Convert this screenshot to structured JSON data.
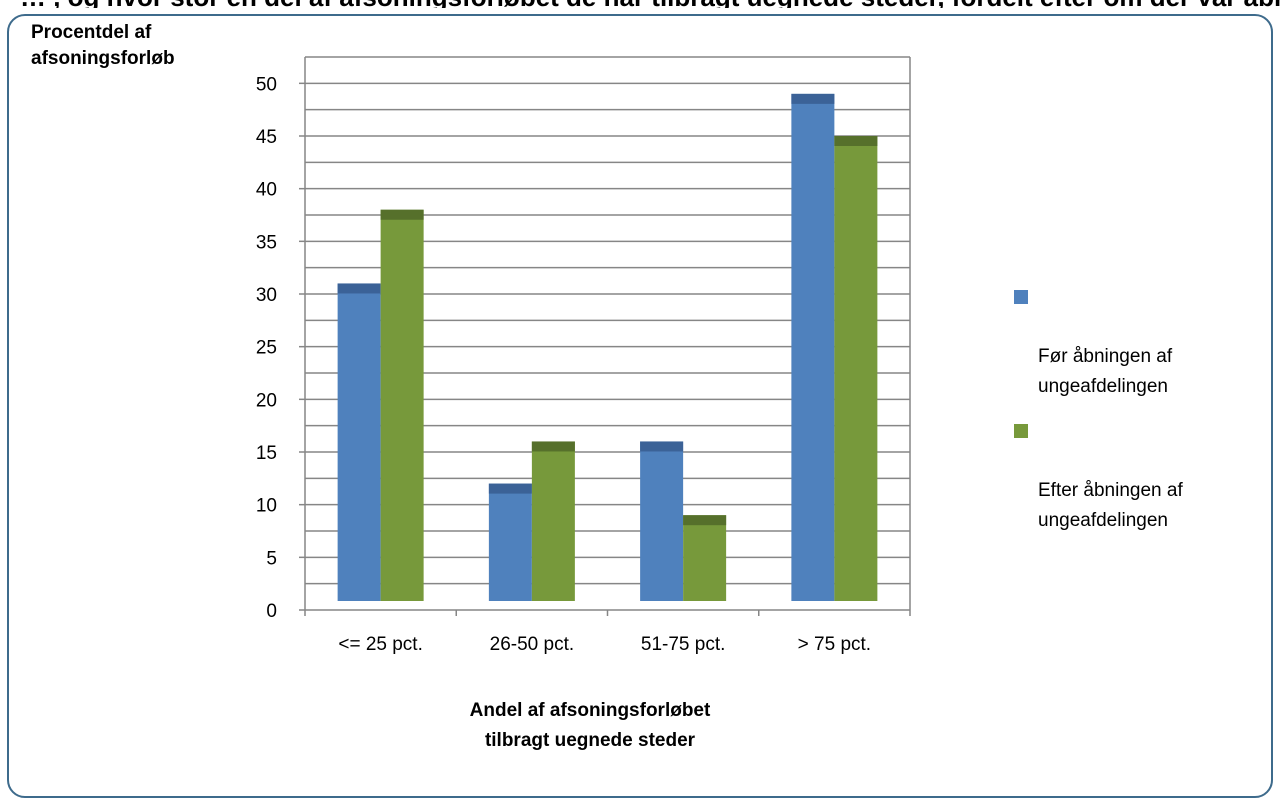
{
  "chart_data": {
    "type": "bar",
    "title": "",
    "top_caption": "… , og hvor stor en del af afsoningsforløbet de har tilbragt uegnede steder, fordelt efter om der var åbnet en ungeafdeling",
    "ylabel": "Procentdel af\nafsoningsforløb",
    "xlabel": "Andel af afsoningsforløbet\ntilbragt uegnede steder",
    "categories": [
      "<= 25 pct.",
      "26-50 pct.",
      "51-75 pct.",
      "> 75 pct."
    ],
    "series": [
      {
        "name": "Før åbningen af\nungeafdelingen",
        "color": "#4f81bd",
        "cap_color": "#3b6297",
        "values": [
          31,
          12,
          16,
          49
        ]
      },
      {
        "name": "Efter åbningen af\nungeafdelingen",
        "color": "#77993b",
        "cap_color": "#56702b",
        "values": [
          38,
          16,
          9,
          45
        ]
      }
    ],
    "ylim": [
      0,
      50
    ],
    "yticks": [
      0,
      5,
      10,
      15,
      20,
      25,
      30,
      35,
      40,
      45,
      50
    ],
    "grid": true,
    "legend_position": "right"
  }
}
